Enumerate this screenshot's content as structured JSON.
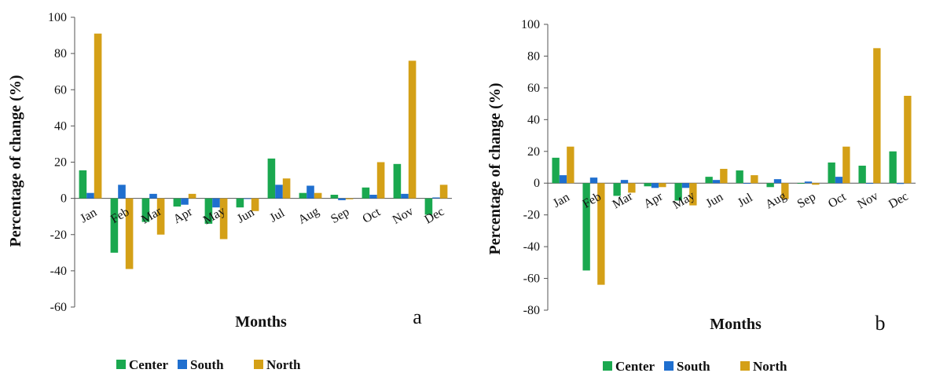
{
  "chart_data": [
    {
      "type": "bar",
      "panel_label": "a",
      "categories": [
        "Jan",
        "Feb",
        "Mar",
        "Apr",
        "May",
        "Jun",
        "Jul",
        "Aug",
        "Sep",
        "Oct",
        "Nov",
        "Dec"
      ],
      "series": [
        {
          "name": "Center",
          "color": "#1aa84f",
          "values": [
            15.5,
            -30,
            -13,
            -4.5,
            -14,
            -5,
            22,
            3,
            2,
            6,
            19,
            -9
          ]
        },
        {
          "name": "South",
          "color": "#1f6fcf",
          "values": [
            3,
            7.5,
            2.5,
            -3.5,
            -5,
            0,
            7.5,
            7,
            -1,
            2,
            2.5,
            0.5
          ]
        },
        {
          "name": "North",
          "color": "#d4a017",
          "values": [
            91,
            -39,
            -20,
            2.5,
            -22.5,
            -7,
            11,
            3,
            -0.5,
            20,
            76,
            7.5
          ]
        }
      ],
      "xlabel": "Months",
      "ylabel": "Percentage of change (%)",
      "ylim": [
        -60,
        100
      ],
      "yticks": [
        -60,
        -40,
        -20,
        0,
        20,
        40,
        60,
        80,
        100
      ],
      "grid": false,
      "legend": "bottom"
    },
    {
      "type": "bar",
      "panel_label": "b",
      "categories": [
        "Jan",
        "Feb",
        "Mar",
        "Apr",
        "May",
        "Jun",
        "Jul",
        "Aug",
        "Sep",
        "Oct",
        "Nov",
        "Dec"
      ],
      "series": [
        {
          "name": "Center",
          "color": "#1aa84f",
          "values": [
            16,
            -55,
            -8,
            -2,
            -11,
            4,
            8,
            -2.5,
            0,
            13,
            11,
            20
          ]
        },
        {
          "name": "South",
          "color": "#1f6fcf",
          "values": [
            5,
            3.5,
            2,
            -3,
            -3,
            2,
            0,
            2.5,
            1,
            4,
            0,
            -0.5
          ]
        },
        {
          "name": "North",
          "color": "#d4a017",
          "values": [
            23,
            -64,
            -6,
            -2.5,
            -14,
            9,
            5,
            -10,
            -1,
            23,
            85,
            55
          ]
        }
      ],
      "xlabel": "Months",
      "ylabel": "Percentage of change (%)",
      "ylim": [
        -80,
        100
      ],
      "yticks": [
        -80,
        -60,
        -40,
        -20,
        0,
        20,
        40,
        60,
        80,
        100
      ],
      "grid": false,
      "legend": "bottom"
    }
  ]
}
